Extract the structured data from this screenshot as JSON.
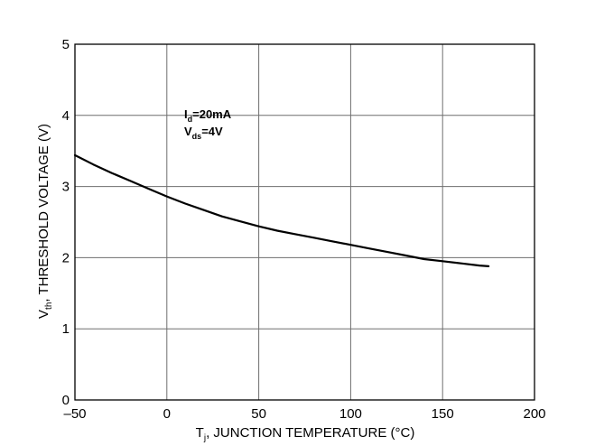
{
  "chart_data": {
    "type": "line",
    "xlabel": {
      "main": "T",
      "sub": "j",
      "rest": ", JUNCTION TEMPERATURE (°C)"
    },
    "ylabel": {
      "main": "V",
      "sub": "th",
      "rest": ", THRESHOLD VOLTAGE (V)"
    },
    "xlim": [
      -50,
      200
    ],
    "ylim": [
      0,
      5
    ],
    "xticks": [
      -50,
      0,
      50,
      100,
      150,
      200
    ],
    "yticks": [
      0,
      1,
      2,
      3,
      4,
      5
    ],
    "xtick_labels": [
      "–50",
      "0",
      "50",
      "100",
      "150",
      "200"
    ],
    "ytick_labels": [
      "0",
      "1",
      "2",
      "3",
      "4",
      "5"
    ],
    "grid": true,
    "annotations": [
      {
        "main": "I",
        "sub": "d",
        "rest": "=20mA"
      },
      {
        "main": "V",
        "sub": "ds",
        "rest": "=4V"
      }
    ],
    "series": [
      {
        "x": [
          -50,
          -40,
          -30,
          -20,
          -10,
          0,
          10,
          20,
          30,
          40,
          50,
          60,
          70,
          80,
          90,
          100,
          110,
          120,
          130,
          140,
          150,
          160,
          170,
          175
        ],
        "values": [
          3.44,
          3.31,
          3.19,
          3.08,
          2.97,
          2.86,
          2.76,
          2.67,
          2.58,
          2.51,
          2.44,
          2.38,
          2.33,
          2.28,
          2.23,
          2.18,
          2.13,
          2.08,
          2.03,
          1.98,
          1.95,
          1.92,
          1.89,
          1.88
        ]
      }
    ]
  }
}
